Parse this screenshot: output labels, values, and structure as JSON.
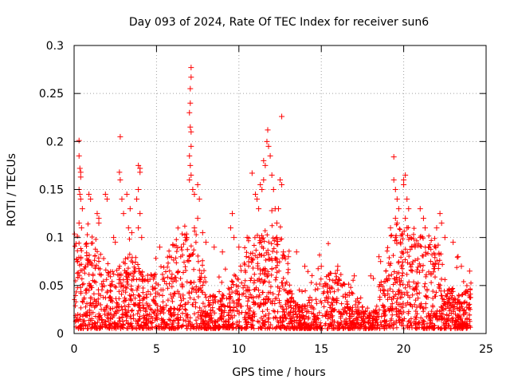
{
  "chart_data": {
    "type": "scatter",
    "title": "Day 093 of 2024, Rate Of TEC Index for receiver sun6",
    "xlabel": "GPS time / hours",
    "ylabel": "ROTI / TECUs",
    "xlim": [
      0,
      25
    ],
    "ylim": [
      0,
      0.3
    ],
    "xticks": [
      0,
      5,
      10,
      15,
      20,
      25
    ],
    "xtick_labels": [
      "0",
      "5",
      "10",
      "15",
      "20",
      "25"
    ],
    "yticks": [
      0,
      0.05,
      0.1,
      0.15,
      0.2,
      0.25,
      0.3
    ],
    "ytick_labels": [
      "0",
      "0.05",
      "0.1",
      "0.15",
      "0.2",
      "0.25",
      "0.3"
    ],
    "grid": true,
    "marker": "plus",
    "color": "#ff0000",
    "series": [
      {
        "name": "",
        "points": [
          [
            0.3,
            0.201
          ],
          [
            0.3,
            0.185
          ],
          [
            0.35,
            0.172
          ],
          [
            0.4,
            0.168
          ],
          [
            0.4,
            0.163
          ],
          [
            0.3,
            0.15
          ],
          [
            0.35,
            0.145
          ],
          [
            0.4,
            0.14
          ],
          [
            0.5,
            0.13
          ],
          [
            0.3,
            0.115
          ],
          [
            0.45,
            0.11
          ],
          [
            0.9,
            0.145
          ],
          [
            1.0,
            0.14
          ],
          [
            1.4,
            0.125
          ],
          [
            1.5,
            0.12
          ],
          [
            1.5,
            0.115
          ],
          [
            1.9,
            0.145
          ],
          [
            2.0,
            0.14
          ],
          [
            2.4,
            0.1
          ],
          [
            2.5,
            0.095
          ],
          [
            2.8,
            0.205
          ],
          [
            2.75,
            0.168
          ],
          [
            2.8,
            0.16
          ],
          [
            2.9,
            0.14
          ],
          [
            3.0,
            0.125
          ],
          [
            3.2,
            0.145
          ],
          [
            3.4,
            0.13
          ],
          [
            3.3,
            0.11
          ],
          [
            3.5,
            0.105
          ],
          [
            3.9,
            0.175
          ],
          [
            4.0,
            0.172
          ],
          [
            4.0,
            0.168
          ],
          [
            3.9,
            0.15
          ],
          [
            3.8,
            0.14
          ],
          [
            4.0,
            0.125
          ],
          [
            3.9,
            0.11
          ],
          [
            4.1,
            0.1
          ],
          [
            5.2,
            0.09
          ],
          [
            6.0,
            0.092
          ],
          [
            6.5,
            0.09
          ],
          [
            6.8,
            0.1
          ],
          [
            7.0,
            0.23
          ],
          [
            7.05,
            0.215
          ],
          [
            7.1,
            0.21
          ],
          [
            7.1,
            0.195
          ],
          [
            7.0,
            0.185
          ],
          [
            7.05,
            0.175
          ],
          [
            7.1,
            0.165
          ],
          [
            7.0,
            0.16
          ],
          [
            7.1,
            0.277
          ],
          [
            7.1,
            0.267
          ],
          [
            7.05,
            0.255
          ],
          [
            7.05,
            0.24
          ],
          [
            7.2,
            0.15
          ],
          [
            7.3,
            0.145
          ],
          [
            7.5,
            0.155
          ],
          [
            7.6,
            0.14
          ],
          [
            7.5,
            0.12
          ],
          [
            7.3,
            0.11
          ],
          [
            7.8,
            0.105
          ],
          [
            8.0,
            0.095
          ],
          [
            8.5,
            0.09
          ],
          [
            9.0,
            0.085
          ],
          [
            9.5,
            0.11
          ],
          [
            9.6,
            0.125
          ],
          [
            9.7,
            0.1
          ],
          [
            10.0,
            0.09
          ],
          [
            10.5,
            0.1
          ],
          [
            10.8,
            0.167
          ],
          [
            11.0,
            0.145
          ],
          [
            11.1,
            0.14
          ],
          [
            11.2,
            0.13
          ],
          [
            11.3,
            0.155
          ],
          [
            11.4,
            0.15
          ],
          [
            11.5,
            0.16
          ],
          [
            11.5,
            0.18
          ],
          [
            11.6,
            0.175
          ],
          [
            11.7,
            0.2
          ],
          [
            11.75,
            0.212
          ],
          [
            11.8,
            0.195
          ],
          [
            11.9,
            0.185
          ],
          [
            12.0,
            0.165
          ],
          [
            12.1,
            0.15
          ],
          [
            12.0,
            0.128
          ],
          [
            12.2,
            0.13
          ],
          [
            12.3,
            0.115
          ],
          [
            12.3,
            0.1
          ],
          [
            12.5,
            0.16
          ],
          [
            12.6,
            0.155
          ],
          [
            12.4,
            0.13
          ],
          [
            12.6,
            0.226
          ],
          [
            12.7,
            0.085
          ],
          [
            13.0,
            0.08
          ],
          [
            13.5,
            0.085
          ],
          [
            14.0,
            0.07
          ],
          [
            15.0,
            0.07
          ],
          [
            16.0,
            0.07
          ],
          [
            17.0,
            0.06
          ],
          [
            18.0,
            0.06
          ],
          [
            18.5,
            0.08
          ],
          [
            18.6,
            0.075
          ],
          [
            19.2,
            0.11
          ],
          [
            19.4,
            0.184
          ],
          [
            19.4,
            0.16
          ],
          [
            19.5,
            0.15
          ],
          [
            19.6,
            0.14
          ],
          [
            19.7,
            0.13
          ],
          [
            19.5,
            0.12
          ],
          [
            19.6,
            0.115
          ],
          [
            19.5,
            0.1
          ],
          [
            19.8,
            0.095
          ],
          [
            20.0,
            0.16
          ],
          [
            20.1,
            0.165
          ],
          [
            20.0,
            0.155
          ],
          [
            20.2,
            0.14
          ],
          [
            20.3,
            0.13
          ],
          [
            20.1,
            0.12
          ],
          [
            20.2,
            0.11
          ],
          [
            20.4,
            0.1
          ],
          [
            20.5,
            0.09
          ],
          [
            21.0,
            0.13
          ],
          [
            21.2,
            0.12
          ],
          [
            21.3,
            0.11
          ],
          [
            21.0,
            0.1
          ],
          [
            21.5,
            0.09
          ],
          [
            22.0,
            0.11
          ],
          [
            22.2,
            0.125
          ],
          [
            22.3,
            0.115
          ],
          [
            22.5,
            0.1
          ],
          [
            23.0,
            0.095
          ],
          [
            23.3,
            0.08
          ],
          [
            23.5,
            0.07
          ],
          [
            24.0,
            0.065
          ]
        ]
      }
    ]
  }
}
